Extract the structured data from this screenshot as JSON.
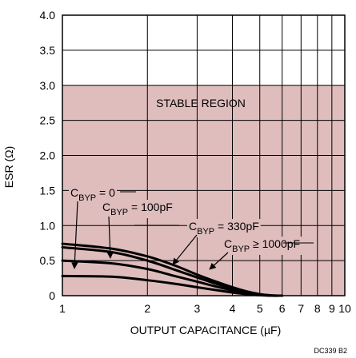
{
  "chart_data": {
    "type": "line",
    "xlabel": "OUTPUT CAPACITANCE (µF)",
    "ylabel": "ESR (Ω)",
    "xscale": "log",
    "xlim": [
      1,
      10
    ],
    "ylim": [
      0,
      4.0
    ],
    "x_ticks": [
      1,
      2,
      3,
      4,
      5,
      6,
      7,
      8,
      9,
      10
    ],
    "x_tick_labels": [
      "1",
      "2",
      "3",
      "4",
      "5",
      "6",
      "7",
      "8",
      "9",
      "10"
    ],
    "y_ticks": [
      0,
      0.5,
      1.0,
      1.5,
      2.0,
      2.5,
      3.0,
      3.5,
      4.0
    ],
    "y_tick_labels": [
      "0",
      "0.5",
      "1.0",
      "1.5",
      "2.0",
      "2.5",
      "3.0",
      "3.5",
      "4.0"
    ],
    "grid": true,
    "region": {
      "label": "STABLE REGION",
      "y_range": [
        0,
        3.0
      ],
      "color": "#dfbdbd"
    },
    "series": [
      {
        "name": "CBYP = 0",
        "label": {
          "base": "C",
          "sub": "BYP",
          "rest": " = 0"
        },
        "x": [
          1,
          1.5,
          2,
          2.5,
          3,
          3.5,
          4,
          4.5,
          5,
          5.5,
          6
        ],
        "y": [
          0.28,
          0.27,
          0.22,
          0.17,
          0.12,
          0.08,
          0.045,
          0.02,
          0.007,
          0.0,
          0.0
        ]
      },
      {
        "name": "CBYP = 100pF",
        "label": {
          "base": "C",
          "sub": "BYP",
          "rest": " = 100pF"
        },
        "x": [
          1,
          1.5,
          2,
          2.5,
          3,
          3.5,
          4,
          4.5,
          5,
          5.5,
          6
        ],
        "y": [
          0.5,
          0.46,
          0.38,
          0.28,
          0.2,
          0.13,
          0.075,
          0.035,
          0.012,
          0.0,
          0.0
        ]
      },
      {
        "name": "CBYP = 330pF",
        "label": {
          "base": "C",
          "sub": "BYP",
          "rest": " = 330pF"
        },
        "x": [
          1,
          1.5,
          2,
          2.5,
          3,
          3.5,
          4,
          4.5,
          5,
          5.5,
          6
        ],
        "y": [
          0.69,
          0.62,
          0.5,
          0.37,
          0.26,
          0.17,
          0.1,
          0.05,
          0.018,
          0.003,
          0.0
        ]
      },
      {
        "name": "CBYP ≥ 1000pF",
        "label": {
          "base": "C",
          "sub": "BYP",
          "rest": " ≥ 1000pF"
        },
        "x": [
          1,
          1.5,
          2,
          2.5,
          3,
          3.5,
          4,
          4.5,
          5,
          5.5,
          6
        ],
        "y": [
          0.74,
          0.67,
          0.56,
          0.43,
          0.3,
          0.2,
          0.12,
          0.06,
          0.022,
          0.004,
          0.0
        ]
      }
    ],
    "figure_id": "DC339 B2"
  },
  "colors": {
    "region_fill": "#dfbdbd",
    "grid": "#000000",
    "curve": "#000000",
    "background": "#ffffff"
  }
}
